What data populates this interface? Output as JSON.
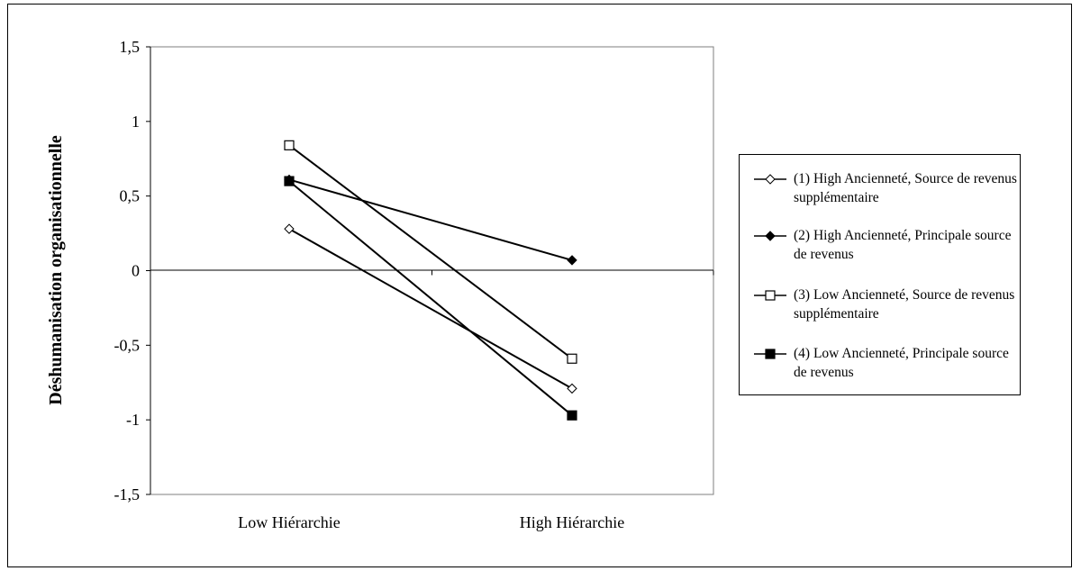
{
  "chart_data": {
    "type": "line",
    "title": "",
    "xlabel": "",
    "ylabel": "Déshumanisation organisationnelle",
    "categories": [
      "Low Hiérarchie",
      "High Hiérarchie"
    ],
    "ylim": [
      -1.5,
      1.5
    ],
    "yticks": [
      1.5,
      1,
      0.5,
      0,
      -0.5,
      -1,
      -1.5
    ],
    "ytick_labels": [
      "1,5",
      "1",
      "0,5",
      "0",
      "-0,5",
      "-1",
      "-1,5"
    ],
    "legend_position": "right",
    "grid": false,
    "series": [
      {
        "name": "(1) High Ancienneté, Source de revenus supplémentaire",
        "values": [
          0.28,
          -0.79
        ],
        "marker": "diamond-open",
        "color": "#000000"
      },
      {
        "name": "(2) High Ancienneté, Principale source de revenus",
        "values": [
          0.61,
          0.07
        ],
        "marker": "diamond-filled",
        "color": "#000000"
      },
      {
        "name": "(3) Low Ancienneté, Source de revenus supplémentaire",
        "values": [
          0.84,
          -0.59
        ],
        "marker": "square-open",
        "color": "#000000"
      },
      {
        "name": "(4) Low Ancienneté, Principale source de revenus",
        "values": [
          0.6,
          -0.97
        ],
        "marker": "square-filled",
        "color": "#000000"
      }
    ]
  }
}
